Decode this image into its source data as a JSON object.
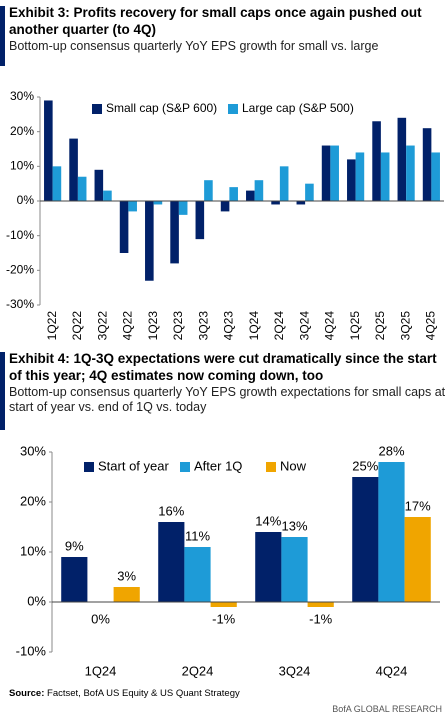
{
  "chart_data": [
    {
      "type": "bar",
      "title": "Exhibit 3: Profits recovery for small caps once again pushed out another quarter (to 4Q)",
      "subtitle": "Bottom-up consensus quarterly YoY EPS growth for small vs. large",
      "categories": [
        "1Q22",
        "2Q22",
        "3Q22",
        "4Q22",
        "1Q23",
        "2Q23",
        "3Q23",
        "4Q23",
        "1Q24",
        "2Q24",
        "3Q24",
        "4Q24",
        "1Q25",
        "2Q25",
        "3Q25",
        "4Q25"
      ],
      "series": [
        {
          "name": "Small cap (S&P 600)",
          "color": "#012169",
          "values": [
            29,
            18,
            9,
            -15,
            -23,
            -18,
            -11,
            -3,
            3,
            -1,
            -1,
            16,
            12,
            23,
            24,
            21
          ]
        },
        {
          "name": "Large cap (S&P 500)",
          "color": "#1e9bd7",
          "values": [
            10,
            7,
            3,
            -3,
            -1,
            -4,
            6,
            4,
            6,
            10,
            5,
            16,
            14,
            14,
            16,
            14
          ]
        }
      ],
      "ylim": [
        -30,
        30
      ],
      "yticks": [
        {
          "value": -30,
          "label": "-30%"
        },
        {
          "value": -20,
          "label": "-20%"
        },
        {
          "value": -10,
          "label": "-10%"
        },
        {
          "value": 0,
          "label": "0%"
        },
        {
          "value": 10,
          "label": "10%"
        },
        {
          "value": 20,
          "label": "20%"
        },
        {
          "value": 30,
          "label": "30%"
        }
      ]
    },
    {
      "type": "bar",
      "title": "Exhibit 4: 1Q-3Q expectations were cut dramatically since the start of this year; 4Q estimates now coming down, too",
      "subtitle": "Bottom-up consensus quarterly YoY EPS growth expectations for small caps at start of year vs. end of 1Q vs. today",
      "categories": [
        "1Q24",
        "2Q24",
        "3Q24",
        "4Q24"
      ],
      "series": [
        {
          "name": "Start of year",
          "color": "#012169",
          "values": [
            9,
            16,
            14,
            25
          ],
          "value_labels": [
            "9%",
            "16%",
            "14%",
            "25%"
          ]
        },
        {
          "name": "After 1Q",
          "color": "#1e9bd7",
          "values": [
            0,
            11,
            13,
            28
          ],
          "value_labels": [
            "0%",
            "11%",
            "13%",
            "28%"
          ]
        },
        {
          "name": "Now",
          "color": "#f0a500",
          "values": [
            3,
            -1,
            -1,
            17
          ],
          "value_labels": [
            "3%",
            "-1%",
            "-1%",
            "17%"
          ]
        }
      ],
      "ylim": [
        -10,
        30
      ],
      "yticks": [
        {
          "value": -10,
          "label": "-10%"
        },
        {
          "value": 0,
          "label": "0%"
        },
        {
          "value": 10,
          "label": "10%"
        },
        {
          "value": 20,
          "label": "20%"
        },
        {
          "value": 30,
          "label": "30%"
        }
      ]
    }
  ],
  "source": {
    "label": "Source:",
    "text": "Factset, BofA US Equity & US Quant Strategy"
  },
  "footer": "BofA GLOBAL RESEARCH"
}
